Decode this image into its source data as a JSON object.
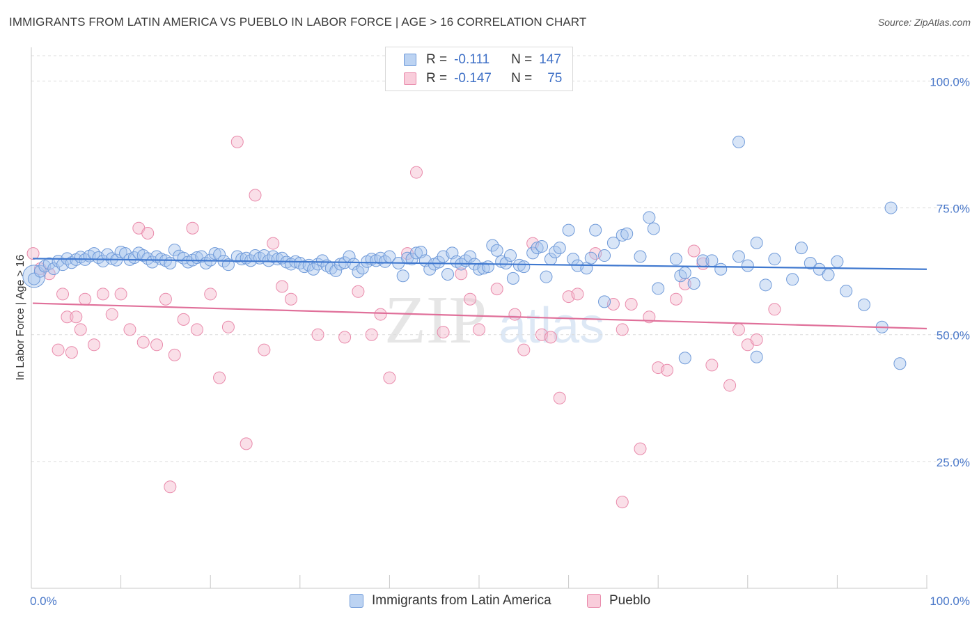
{
  "title": "IMMIGRANTS FROM LATIN AMERICA VS PUEBLO IN LABOR FORCE | AGE > 16 CORRELATION CHART",
  "source": "Source: ZipAtlas.com",
  "watermark": {
    "zip": "ZIP",
    "atlas": "atlas"
  },
  "colors": {
    "blue": "#5b8fd6",
    "blue_fill": "#a9c6ee",
    "pink": "#e8709a",
    "pink_fill": "#f5b7cb",
    "axis_text": "#4a78c9"
  },
  "stats": [
    {
      "r_label": "R =",
      "r_value": "-0.111",
      "n_label": "N =",
      "n_value": "147"
    },
    {
      "r_label": "R =",
      "r_value": "-0.147",
      "n_label": "N =",
      "n_value": "75"
    }
  ],
  "legend": [
    {
      "label": "Immigrants from Latin America"
    },
    {
      "label": "Pueblo"
    }
  ],
  "chart_data": {
    "type": "scatter",
    "title": "IMMIGRANTS FROM LATIN AMERICA VS PUEBLO IN LABOR FORCE | AGE > 16 CORRELATION CHART",
    "xlabel": "",
    "ylabel": "In Labor Force | Age > 16",
    "xlim": [
      0,
      100
    ],
    "ylim": [
      0,
      105
    ],
    "x_tick_labels": [
      "0.0%",
      "100.0%"
    ],
    "y_ticks": [
      25,
      50,
      75,
      100
    ],
    "y_tick_labels": [
      "25.0%",
      "50.0%",
      "75.0%",
      "100.0%"
    ],
    "grid": true,
    "legend_position": "bottom",
    "series": [
      {
        "name": "Immigrants from Latin America",
        "trend": {
          "x": [
            0,
            100
          ],
          "y": [
            65.0,
            62.9
          ]
        },
        "points": [
          [
            0.3,
            61
          ],
          [
            1,
            62.5
          ],
          [
            1.5,
            63.5
          ],
          [
            2,
            64
          ],
          [
            2.5,
            63
          ],
          [
            3,
            64.5
          ],
          [
            3.5,
            63.8
          ],
          [
            4,
            65
          ],
          [
            4.5,
            64.2
          ],
          [
            5,
            64.8
          ],
          [
            5.5,
            65.3
          ],
          [
            6,
            64.8
          ],
          [
            6.5,
            65.5
          ],
          [
            7,
            66
          ],
          [
            7.5,
            65.2
          ],
          [
            8,
            64.5
          ],
          [
            8.5,
            65.8
          ],
          [
            9,
            65
          ],
          [
            9.5,
            64.7
          ],
          [
            10,
            66.3
          ],
          [
            10.5,
            66
          ],
          [
            11,
            64.8
          ],
          [
            11.5,
            65.2
          ],
          [
            12,
            66.1
          ],
          [
            12.5,
            65.6
          ],
          [
            13,
            65
          ],
          [
            13.5,
            64.3
          ],
          [
            14,
            65.4
          ],
          [
            14.5,
            64.9
          ],
          [
            15,
            64.6
          ],
          [
            15.5,
            64.1
          ],
          [
            16,
            66.7
          ],
          [
            16.5,
            65.5
          ],
          [
            17,
            65.1
          ],
          [
            17.5,
            64.3
          ],
          [
            18,
            64.7
          ],
          [
            18.5,
            65.2
          ],
          [
            19,
            65.4
          ],
          [
            19.5,
            64.1
          ],
          [
            20,
            64.7
          ],
          [
            20.5,
            66
          ],
          [
            21,
            65.8
          ],
          [
            21.5,
            64.5
          ],
          [
            22,
            63.8
          ],
          [
            23,
            65.4
          ],
          [
            23.5,
            64.9
          ],
          [
            24,
            65.1
          ],
          [
            24.5,
            64.6
          ],
          [
            25,
            65.6
          ],
          [
            25.5,
            65.1
          ],
          [
            26,
            65.6
          ],
          [
            26.5,
            64.6
          ],
          [
            27,
            65.4
          ],
          [
            27.5,
            64.9
          ],
          [
            28,
            65.1
          ],
          [
            28.5,
            64.3
          ],
          [
            29,
            63.9
          ],
          [
            29.5,
            64.4
          ],
          [
            30,
            64.1
          ],
          [
            30.5,
            63.4
          ],
          [
            31,
            63.7
          ],
          [
            31.5,
            62.9
          ],
          [
            32,
            63.9
          ],
          [
            32.5,
            64.6
          ],
          [
            33,
            63.6
          ],
          [
            33.5,
            63.1
          ],
          [
            34,
            62.6
          ],
          [
            34.5,
            63.9
          ],
          [
            35,
            64.2
          ],
          [
            35.5,
            65.4
          ],
          [
            36,
            63.9
          ],
          [
            36.5,
            62.4
          ],
          [
            37,
            63.1
          ],
          [
            37.5,
            64.4
          ],
          [
            38,
            64.9
          ],
          [
            38.5,
            64.6
          ],
          [
            39,
            65.1
          ],
          [
            39.5,
            64.4
          ],
          [
            40,
            65.4
          ],
          [
            41,
            64.1
          ],
          [
            41.5,
            61.6
          ],
          [
            42,
            65.1
          ],
          [
            42.5,
            64.9
          ],
          [
            43,
            66.1
          ],
          [
            43.5,
            66.3
          ],
          [
            44,
            64.6
          ],
          [
            44.5,
            62.9
          ],
          [
            45,
            63.9
          ],
          [
            45.5,
            64.3
          ],
          [
            46,
            65.4
          ],
          [
            46.5,
            61.9
          ],
          [
            47,
            66.1
          ],
          [
            47.5,
            64.4
          ],
          [
            48,
            63.9
          ],
          [
            48.5,
            64.6
          ],
          [
            49,
            65.4
          ],
          [
            49.5,
            63.9
          ],
          [
            50,
            62.9
          ],
          [
            50.5,
            63.1
          ],
          [
            51,
            63.4
          ],
          [
            51.5,
            67.6
          ],
          [
            52,
            66.6
          ],
          [
            52.5,
            64.4
          ],
          [
            53,
            64.1
          ],
          [
            53.5,
            65.6
          ],
          [
            53.8,
            61.1
          ],
          [
            54.5,
            63.7
          ],
          [
            55,
            63.4
          ],
          [
            56,
            66.1
          ],
          [
            56.5,
            67.1
          ],
          [
            57,
            67.4
          ],
          [
            57.5,
            61.4
          ],
          [
            58,
            64.9
          ],
          [
            58.5,
            66.3
          ],
          [
            59,
            67.1
          ],
          [
            60,
            70.6
          ],
          [
            60.5,
            64.9
          ],
          [
            61,
            63.6
          ],
          [
            62,
            63.1
          ],
          [
            62.5,
            65.1
          ],
          [
            63,
            70.6
          ],
          [
            64,
            65.6
          ],
          [
            65,
            68.1
          ],
          [
            66,
            69.6
          ],
          [
            66.5,
            69.9
          ],
          [
            68,
            65.4
          ],
          [
            69,
            73.1
          ],
          [
            69.5,
            70.9
          ],
          [
            70,
            59.1
          ],
          [
            72,
            64.9
          ],
          [
            72.5,
            61.6
          ],
          [
            73,
            62.2
          ],
          [
            74,
            60.1
          ],
          [
            75,
            64.6
          ],
          [
            76,
            64.6
          ],
          [
            77,
            62.9
          ],
          [
            79,
            65.4
          ],
          [
            80,
            63.6
          ],
          [
            81,
            68.1
          ],
          [
            82,
            59.8
          ],
          [
            83,
            64.9
          ],
          [
            85,
            60.9
          ],
          [
            86,
            67.1
          ],
          [
            87,
            64.1
          ],
          [
            88,
            62.9
          ],
          [
            89,
            61.8
          ],
          [
            90,
            64.4
          ],
          [
            91,
            58.6
          ],
          [
            93,
            55.9
          ],
          [
            95,
            51.5
          ],
          [
            97,
            44.3
          ],
          [
            64,
            56.5
          ],
          [
            73,
            45.4
          ],
          [
            81,
            45.6
          ],
          [
            79,
            88
          ],
          [
            96,
            75
          ]
        ],
        "big_point": [
          0.3,
          61.5
        ]
      },
      {
        "name": "Pueblo",
        "trend": {
          "x": [
            0,
            100
          ],
          "y": [
            56.2,
            51.2
          ]
        },
        "points": [
          [
            0.2,
            66
          ],
          [
            1,
            63
          ],
          [
            2,
            62
          ],
          [
            3,
            47
          ],
          [
            3.5,
            58
          ],
          [
            4,
            53.5
          ],
          [
            4.5,
            46.5
          ],
          [
            5,
            53.5
          ],
          [
            5.5,
            51
          ],
          [
            6,
            57
          ],
          [
            7,
            48
          ],
          [
            8,
            58
          ],
          [
            9,
            54
          ],
          [
            10,
            58
          ],
          [
            11,
            51
          ],
          [
            12,
            71
          ],
          [
            12.5,
            48.5
          ],
          [
            13,
            70
          ],
          [
            14,
            48
          ],
          [
            15,
            57
          ],
          [
            15.5,
            20
          ],
          [
            16,
            46
          ],
          [
            17,
            53
          ],
          [
            18,
            71
          ],
          [
            18.5,
            51
          ],
          [
            20,
            58
          ],
          [
            21,
            41.5
          ],
          [
            22,
            51.5
          ],
          [
            23,
            88
          ],
          [
            24,
            28.5
          ],
          [
            25,
            77.5
          ],
          [
            26,
            47
          ],
          [
            27,
            68
          ],
          [
            28,
            59.5
          ],
          [
            29,
            57
          ],
          [
            32,
            50
          ],
          [
            35,
            49.5
          ],
          [
            36.5,
            58.5
          ],
          [
            38,
            50
          ],
          [
            39,
            54
          ],
          [
            40,
            41.5
          ],
          [
            42,
            66
          ],
          [
            43,
            82
          ],
          [
            46,
            50.5
          ],
          [
            48,
            62
          ],
          [
            49,
            57
          ],
          [
            50,
            51
          ],
          [
            52,
            59
          ],
          [
            54,
            54
          ],
          [
            55,
            47
          ],
          [
            56,
            68
          ],
          [
            57,
            50
          ],
          [
            58,
            49.5
          ],
          [
            59,
            37.5
          ],
          [
            60,
            57.5
          ],
          [
            61,
            58
          ],
          [
            63,
            66
          ],
          [
            65,
            56
          ],
          [
            66,
            51
          ],
          [
            67,
            56
          ],
          [
            68,
            27.5
          ],
          [
            69,
            53.5
          ],
          [
            70,
            43.5
          ],
          [
            71,
            43
          ],
          [
            72,
            57
          ],
          [
            73,
            60
          ],
          [
            74,
            66.5
          ],
          [
            75,
            64
          ],
          [
            76,
            44
          ],
          [
            78,
            40
          ],
          [
            79,
            51
          ],
          [
            80,
            48
          ],
          [
            81,
            49
          ],
          [
            66,
            17
          ],
          [
            83,
            55
          ]
        ]
      }
    ]
  }
}
